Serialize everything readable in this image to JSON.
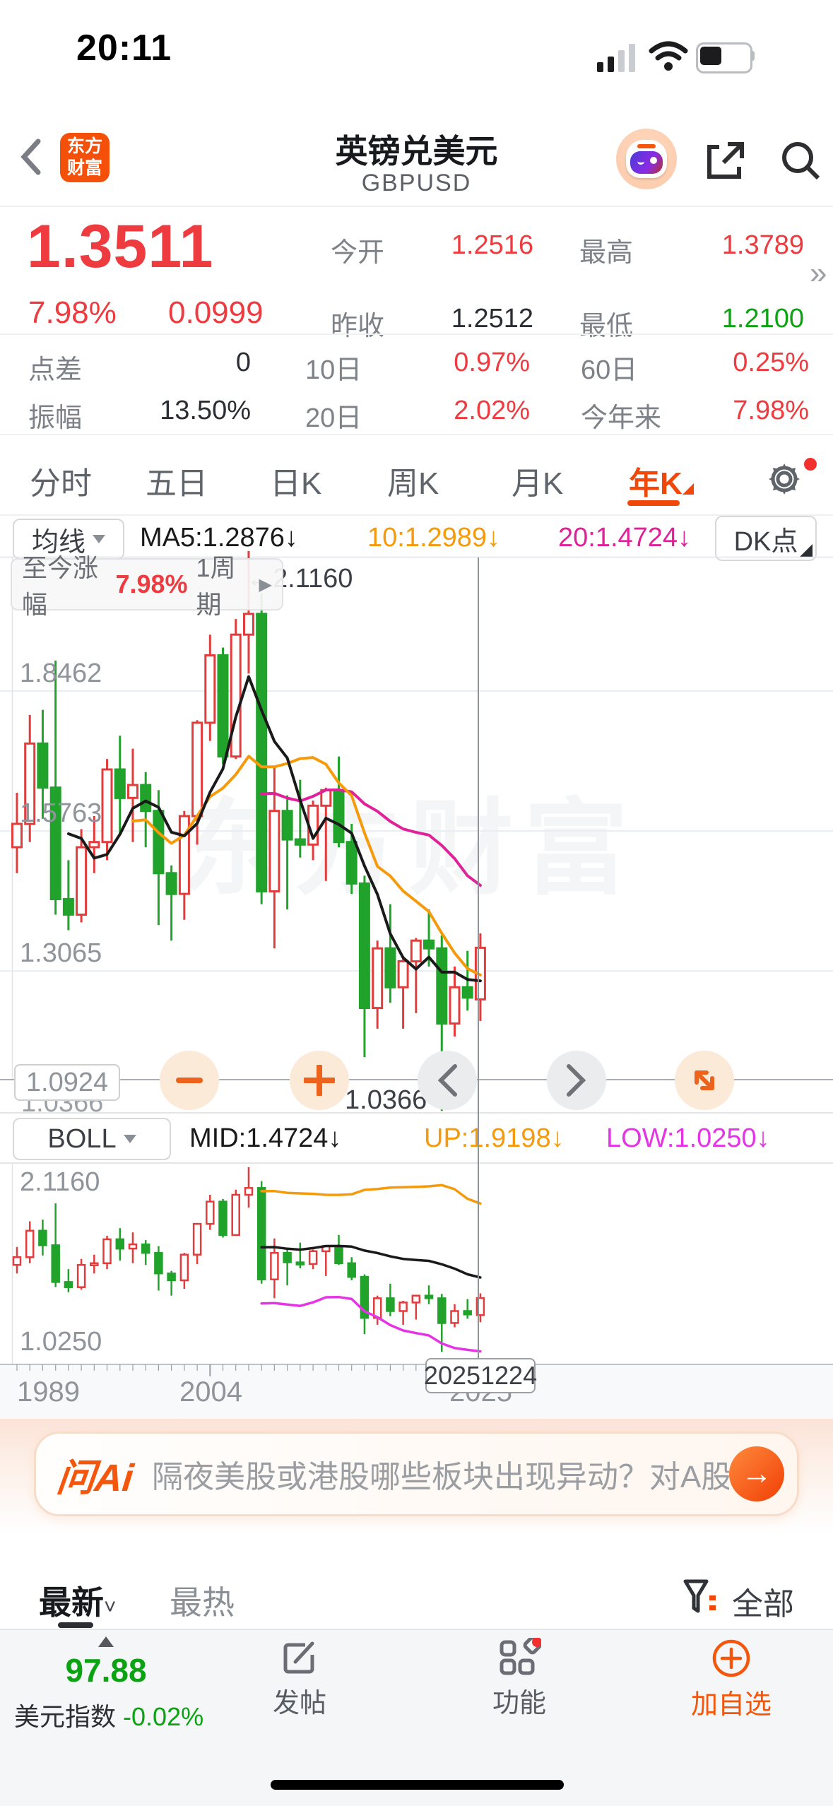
{
  "status_bar": {
    "time": "20:11"
  },
  "header": {
    "logo_line1": "东方",
    "logo_line2": "财富",
    "title": "英镑兑美元",
    "subtitle": "GBPUSD"
  },
  "quote": {
    "price": "1.3511",
    "change_pct": "7.98%",
    "change_abs": "0.0999",
    "fields": [
      {
        "label": "今开",
        "value": "1.2516",
        "color": "red"
      },
      {
        "label": "最高",
        "value": "1.3789",
        "color": "red"
      },
      {
        "label": "昨收",
        "value": "1.2512",
        "color": "dark"
      },
      {
        "label": "最低",
        "value": "1.2100",
        "color": "green"
      }
    ],
    "more_indicator": "»"
  },
  "stats": {
    "items": [
      {
        "label": "点差",
        "value": "0",
        "color": "dark"
      },
      {
        "label": "10日",
        "value": "0.97%",
        "color": "red"
      },
      {
        "label": "60日",
        "value": "0.25%",
        "color": "red"
      },
      {
        "label": "振幅",
        "value": "13.50%",
        "color": "dark"
      },
      {
        "label": "20日",
        "value": "2.02%",
        "color": "red"
      },
      {
        "label": "今年来",
        "value": "7.98%",
        "color": "red"
      }
    ]
  },
  "chart_tabs": {
    "items": [
      "分时",
      "五日",
      "日K",
      "周K",
      "月K",
      "年K"
    ],
    "selected": "年K"
  },
  "ma_row": {
    "selector": "均线",
    "ma5": "MA5:1.2876↓",
    "ma10": "10:1.2989↓",
    "ma20": "20:1.4724↓",
    "dk_button": "DK点"
  },
  "tooltip": {
    "prefix": "至今涨幅",
    "value": "7.98%",
    "period": "1周期",
    "arrow": "▶"
  },
  "main_chart": {
    "y_labels": [
      "1.8462",
      "1.5763",
      "1.3065"
    ],
    "top_annotation": "←2.1160",
    "low_annotation": "1.0366→",
    "boxed_min": "1.0924",
    "bottom_axis_label": "1.0366",
    "watermark": "东方财富"
  },
  "boll_row": {
    "selector": "BOLL",
    "mid": "MID:1.4724↓",
    "up": "UP:1.9198↓",
    "low": "LOW:1.0250↓"
  },
  "lower_chart": {
    "y_top": "2.1160",
    "y_bottom": "1.0250",
    "x_labels": [
      "1989",
      "2004",
      "2025"
    ],
    "date_box": "20251224"
  },
  "ask_ai": {
    "logo": "问Ai",
    "question": "隔夜美股或港股哪些板块出现异动？对A股...",
    "arrow": "→"
  },
  "feed_tabs": {
    "latest": "最新",
    "hot": "最热",
    "filter": "全部"
  },
  "bottom_nav": {
    "index_value": "97.88",
    "index_label": "美元指数",
    "index_change": "-0.02%",
    "post": "发帖",
    "features": "功能",
    "add": "加自选"
  },
  "colors": {
    "up": "#e23c3c",
    "down": "#21a32b",
    "ma5": "#1a1a1a",
    "ma10": "#f59a0b",
    "ma20": "#e0219a",
    "boll_up": "#f59a0b",
    "boll_mid": "#1a1a1a",
    "boll_low": "#e534e5",
    "accent": "#f0480a",
    "crosshair": "#8f949b",
    "grid": "#e8edf3"
  },
  "chart_data": {
    "type": "candlestick",
    "title": "GBPUSD yearly candles with MA5/MA10/MA20 (main pane) and BOLL(20,2) (lower pane)",
    "x": [
      1989,
      1990,
      1991,
      1992,
      1993,
      1994,
      1995,
      1996,
      1997,
      1998,
      1999,
      2000,
      2001,
      2002,
      2003,
      2004,
      2005,
      2006,
      2007,
      2008,
      2009,
      2010,
      2011,
      2012,
      2013,
      2014,
      2015,
      2016,
      2017,
      2018,
      2019,
      2020,
      2021,
      2022,
      2023,
      2024,
      2025
    ],
    "ohlc": [
      [
        1.545,
        1.65,
        1.495,
        1.59
      ],
      [
        1.59,
        1.8,
        1.555,
        1.745
      ],
      [
        1.745,
        1.81,
        1.6,
        1.66
      ],
      [
        1.66,
        1.905,
        1.415,
        1.445
      ],
      [
        1.445,
        1.52,
        1.385,
        1.415
      ],
      [
        1.415,
        1.58,
        1.4,
        1.545
      ],
      [
        1.545,
        1.605,
        1.495,
        1.555
      ],
      [
        1.555,
        1.715,
        1.52,
        1.695
      ],
      [
        1.695,
        1.76,
        1.57,
        1.64
      ],
      [
        1.64,
        1.735,
        1.555,
        1.665
      ],
      [
        1.665,
        1.69,
        1.545,
        1.615
      ],
      [
        1.615,
        1.655,
        1.395,
        1.495
      ],
      [
        1.495,
        1.51,
        1.365,
        1.455
      ],
      [
        1.455,
        1.615,
        1.405,
        1.605
      ],
      [
        1.605,
        1.79,
        1.55,
        1.785
      ],
      [
        1.785,
        1.955,
        1.75,
        1.915
      ],
      [
        1.915,
        1.93,
        1.705,
        1.72
      ],
      [
        1.72,
        1.985,
        1.715,
        1.955
      ],
      [
        1.955,
        2.116,
        1.88,
        1.995
      ],
      [
        1.995,
        2.035,
        1.435,
        1.46
      ],
      [
        1.46,
        1.7,
        1.35,
        1.615
      ],
      [
        1.615,
        1.645,
        1.425,
        1.56
      ],
      [
        1.56,
        1.675,
        1.525,
        1.55
      ],
      [
        1.55,
        1.635,
        1.52,
        1.625
      ],
      [
        1.625,
        1.66,
        1.48,
        1.655
      ],
      [
        1.655,
        1.72,
        1.545,
        1.555
      ],
      [
        1.555,
        1.59,
        1.455,
        1.475
      ],
      [
        1.475,
        1.49,
        1.14,
        1.235
      ],
      [
        1.235,
        1.365,
        1.195,
        1.35
      ],
      [
        1.35,
        1.435,
        1.245,
        1.275
      ],
      [
        1.275,
        1.335,
        1.195,
        1.325
      ],
      [
        1.325,
        1.37,
        1.225,
        1.365
      ],
      [
        1.365,
        1.425,
        1.315,
        1.35
      ],
      [
        1.35,
        1.375,
        1.0366,
        1.205
      ],
      [
        1.205,
        1.315,
        1.18,
        1.275
      ],
      [
        1.275,
        1.345,
        1.23,
        1.255
      ],
      [
        1.2516,
        1.3789,
        1.21,
        1.3511
      ]
    ],
    "main_pane": {
      "y_top": 2.116,
      "y_gridlines": [
        1.8462,
        1.5763,
        1.3065
      ],
      "y_axis_min": 1.0366,
      "boxed_min": 1.0924,
      "overlays": [
        "MA5",
        "MA10",
        "MA20"
      ]
    },
    "lower_pane": {
      "y_range": [
        1.025,
        2.116
      ],
      "overlays": [
        "BOLL(20,2)"
      ],
      "x_tick_labels": [
        1989,
        2004,
        2025
      ]
    },
    "annotations": {
      "all_time_high": "2.1160",
      "all_time_low": "1.0366",
      "crosshair_date": "20251224",
      "crosshair_index": 36
    },
    "legend": {
      "ma5": "MA5:1.2876↓",
      "ma10": "10:1.2989↓",
      "ma20": "20:1.4724↓",
      "boll_mid": "MID:1.4724↓",
      "boll_up": "UP:1.9198↓",
      "boll_low": "LOW:1.0250↓"
    }
  }
}
